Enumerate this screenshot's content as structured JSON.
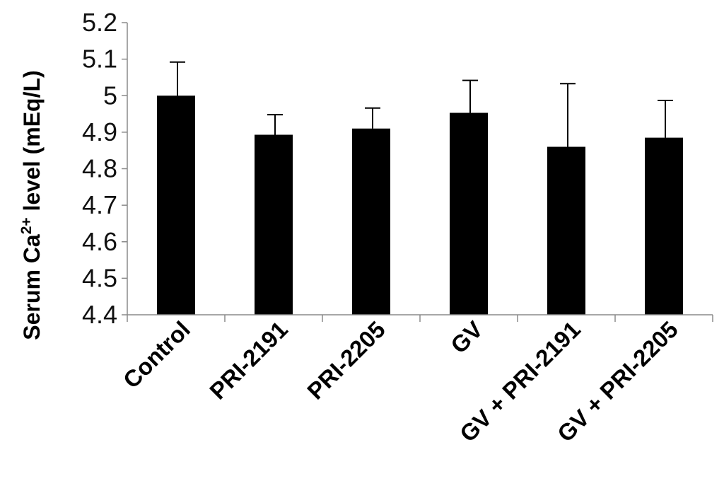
{
  "chart_data": {
    "type": "bar",
    "ylabel_parts": [
      "Serum Ca",
      "2+",
      " level (mEq/L)"
    ],
    "ylim": [
      4.4,
      5.2
    ],
    "yticks": [
      "4.4",
      "4.5",
      "4.6",
      "4.7",
      "4.8",
      "4.9",
      "5",
      "5.1",
      "5.2"
    ],
    "categories": [
      "Control",
      "PRI-2191",
      "PRI-2205",
      "GV",
      "GV + PRI-2191",
      "GV + PRI-2205"
    ],
    "values": [
      5.0,
      4.893,
      4.91,
      4.953,
      4.86,
      4.885
    ],
    "error_upper": [
      0.092,
      0.055,
      0.056,
      0.089,
      0.173,
      0.102
    ],
    "grid": false,
    "legend": "none",
    "bar_color": "#000000"
  }
}
